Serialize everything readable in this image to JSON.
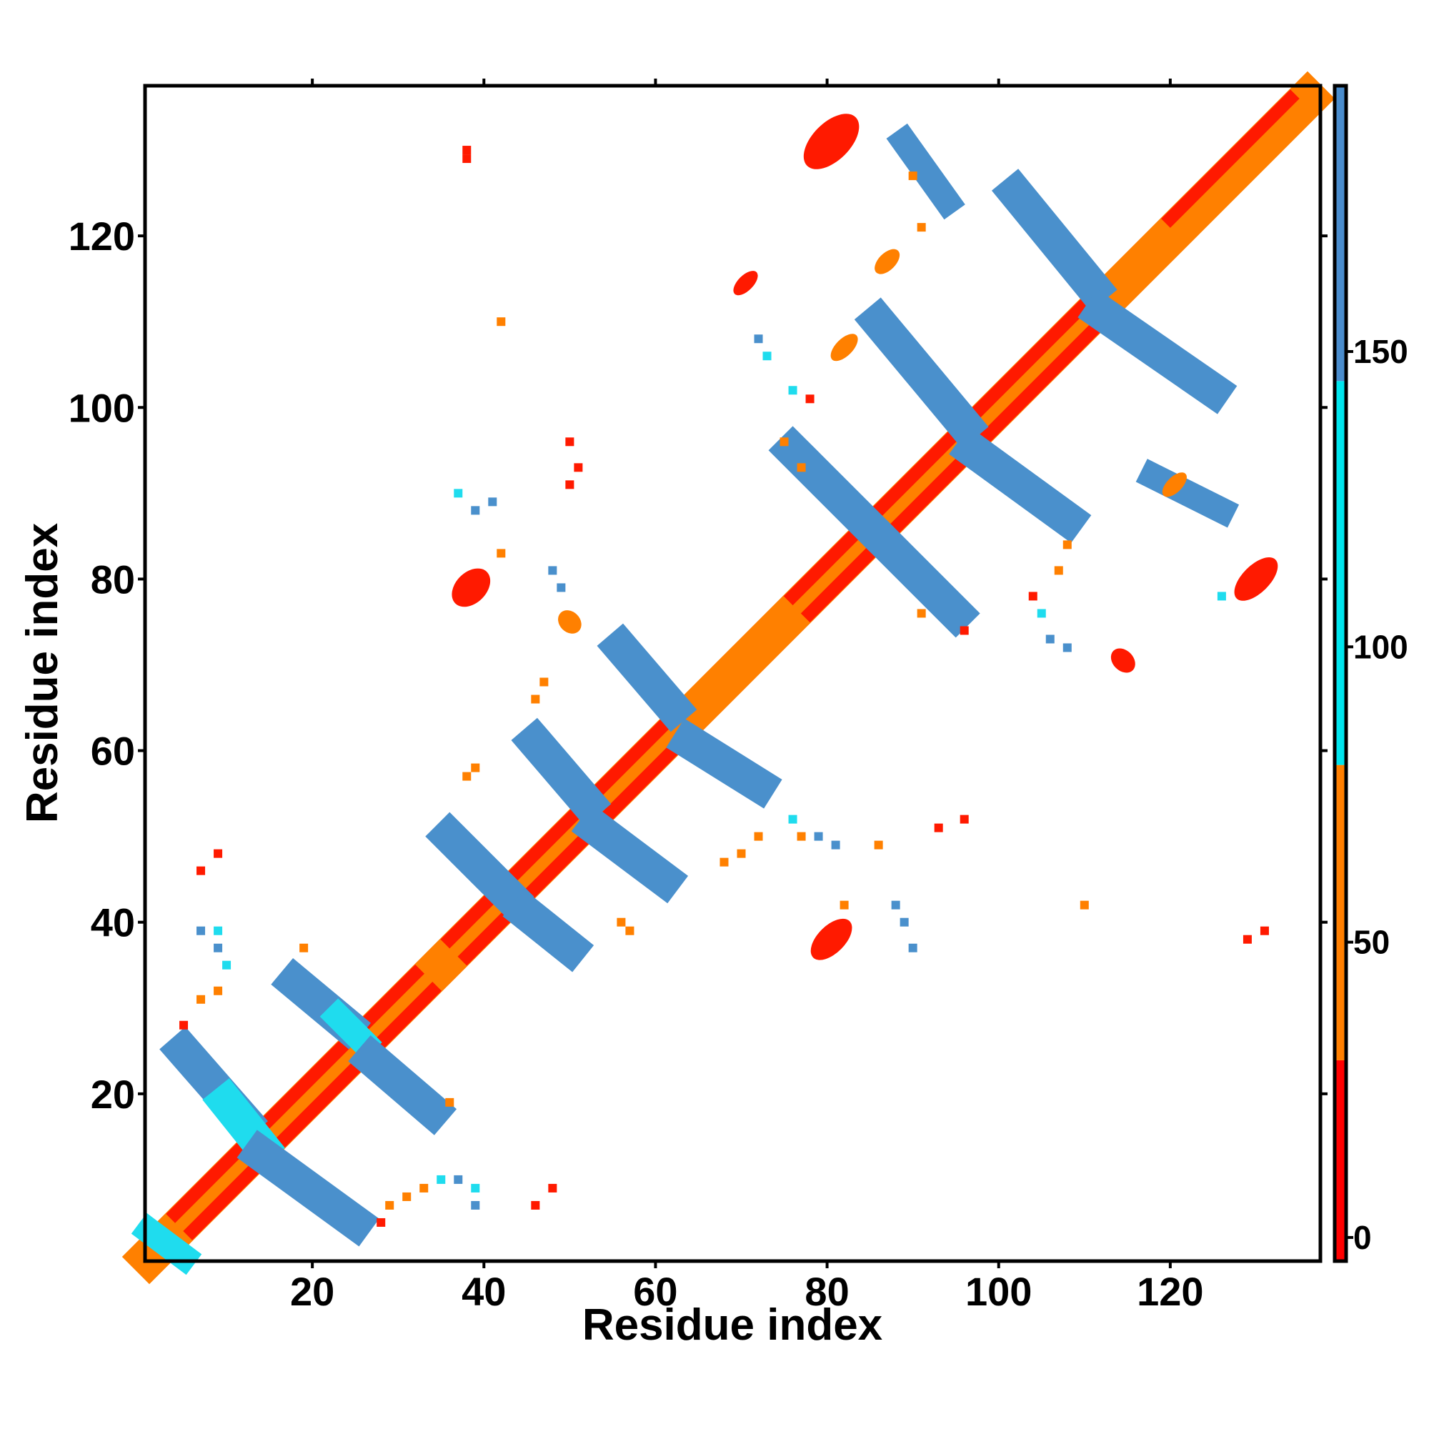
{
  "chart_data": {
    "type": "heatmap",
    "title": "",
    "xlabel": "Residue index",
    "ylabel": "Residue index",
    "xlim": [
      1,
      137
    ],
    "ylim": [
      1,
      137
    ],
    "x_ticks": [
      20,
      40,
      60,
      80,
      100,
      120
    ],
    "y_ticks": [
      20,
      40,
      60,
      80,
      100,
      120
    ],
    "colorbar": {
      "ticks": [
        0,
        50,
        100,
        150
      ],
      "range": [
        -4,
        195
      ],
      "bands": [
        {
          "from": -4,
          "to": 30,
          "color": "#ff0000"
        },
        {
          "from": 30,
          "to": 80,
          "color": "#ff7f00"
        },
        {
          "from": 80,
          "to": 145,
          "color": "#00e5ee"
        },
        {
          "from": 145,
          "to": 195,
          "color": "#4a8ccc"
        }
      ]
    },
    "colors": {
      "red": "#ff1a00",
      "orange": "#ff8000",
      "cyan": "#1fdcee",
      "blue": "#4a90cc"
    },
    "segments": [
      {
        "x1": 1,
        "y1": 1,
        "x2": 136,
        "y2": 136,
        "w": 4.5,
        "color": "orange"
      },
      {
        "x1": 4,
        "y1": 6,
        "x2": 32,
        "y2": 34,
        "w": 1.5,
        "color": "red"
      },
      {
        "x1": 6,
        "y1": 4,
        "x2": 34,
        "y2": 32,
        "w": 1.5,
        "color": "red"
      },
      {
        "x1": 36,
        "y1": 38,
        "x2": 62,
        "y2": 64,
        "w": 1.5,
        "color": "red"
      },
      {
        "x1": 38,
        "y1": 36,
        "x2": 64,
        "y2": 62,
        "w": 1.5,
        "color": "red"
      },
      {
        "x1": 76,
        "y1": 78,
        "x2": 110,
        "y2": 112,
        "w": 1.5,
        "color": "red"
      },
      {
        "x1": 78,
        "y1": 76,
        "x2": 112,
        "y2": 110,
        "w": 1.5,
        "color": "red"
      },
      {
        "x1": 120,
        "y1": 122,
        "x2": 134,
        "y2": 136,
        "w": 1.5,
        "color": "red"
      },
      {
        "x1": 1,
        "y1": 4,
        "x2": 5,
        "y2": 1,
        "w": 3,
        "color": "cyan"
      },
      {
        "x1": 5,
        "y1": 25,
        "x2": 12,
        "y2": 17,
        "w": 4,
        "color": "blue"
      },
      {
        "x1": 10,
        "y1": 19,
        "x2": 14,
        "y2": 14,
        "w": 4,
        "color": "cyan"
      },
      {
        "x1": 14,
        "y1": 13,
        "x2": 25,
        "y2": 5,
        "w": 4,
        "color": "blue"
      },
      {
        "x1": 18,
        "y1": 33,
        "x2": 24,
        "y2": 28,
        "w": 4,
        "color": "blue"
      },
      {
        "x1": 23,
        "y1": 29,
        "x2": 26,
        "y2": 26,
        "w": 3,
        "color": "cyan"
      },
      {
        "x1": 27,
        "y1": 24,
        "x2": 34,
        "y2": 18,
        "w": 4,
        "color": "blue"
      },
      {
        "x1": 36,
        "y1": 50,
        "x2": 43,
        "y2": 43,
        "w": 4,
        "color": "blue"
      },
      {
        "x1": 45,
        "y1": 41,
        "x2": 50,
        "y2": 37,
        "w": 4,
        "color": "blue"
      },
      {
        "x1": 46,
        "y1": 61,
        "x2": 52,
        "y2": 54,
        "w": 4,
        "color": "blue"
      },
      {
        "x1": 53,
        "y1": 51,
        "x2": 61,
        "y2": 45,
        "w": 4,
        "color": "blue"
      },
      {
        "x1": 56,
        "y1": 72,
        "x2": 62,
        "y2": 65,
        "w": 4,
        "color": "blue"
      },
      {
        "x1": 64,
        "y1": 61,
        "x2": 72,
        "y2": 56,
        "w": 4,
        "color": "blue"
      },
      {
        "x1": 76,
        "y1": 95,
        "x2": 85,
        "y2": 86,
        "w": 4,
        "color": "blue"
      },
      {
        "x1": 87,
        "y1": 84,
        "x2": 95,
        "y2": 76,
        "w": 4,
        "color": "blue"
      },
      {
        "x1": 86,
        "y1": 110,
        "x2": 96,
        "y2": 98,
        "w": 4,
        "color": "blue"
      },
      {
        "x1": 97,
        "y1": 95,
        "x2": 108,
        "y2": 87,
        "w": 4,
        "color": "blue"
      },
      {
        "x1": 102,
        "y1": 125,
        "x2": 111,
        "y2": 114,
        "w": 4,
        "color": "blue"
      },
      {
        "x1": 112,
        "y1": 111,
        "x2": 125,
        "y2": 102,
        "w": 4,
        "color": "blue"
      },
      {
        "x1": 89,
        "y1": 131,
        "x2": 94,
        "y2": 124,
        "w": 3,
        "color": "blue"
      },
      {
        "x1": 118,
        "y1": 92,
        "x2": 126,
        "y2": 88,
        "w": 3,
        "color": "blue"
      }
    ],
    "blobs": [
      {
        "x": 80.5,
        "y": 131,
        "rx": 4,
        "ry": 2.2,
        "color": "red"
      },
      {
        "x": 38.5,
        "y": 79,
        "rx": 2.6,
        "ry": 1.8,
        "color": "red"
      },
      {
        "x": 80.5,
        "y": 38,
        "rx": 3,
        "ry": 1.6,
        "color": "red"
      },
      {
        "x": 130,
        "y": 80,
        "rx": 3.2,
        "ry": 1.6,
        "color": "red"
      },
      {
        "x": 70.5,
        "y": 114.5,
        "rx": 1.8,
        "ry": 0.9,
        "color": "red"
      },
      {
        "x": 114.5,
        "y": 70.5,
        "rx": 1.2,
        "ry": 1.6,
        "color": "red"
      },
      {
        "x": 50,
        "y": 75,
        "rx": 1.2,
        "ry": 1.5,
        "color": "orange"
      },
      {
        "x": 120.5,
        "y": 91,
        "rx": 1.8,
        "ry": 0.9,
        "color": "orange"
      },
      {
        "x": 87,
        "y": 117,
        "rx": 1.8,
        "ry": 1,
        "color": "orange"
      },
      {
        "x": 82,
        "y": 107,
        "rx": 2,
        "ry": 1,
        "color": "orange"
      }
    ],
    "cells": [
      {
        "x": 38,
        "y": 130,
        "color": "red"
      },
      {
        "x": 38,
        "y": 129,
        "color": "red"
      },
      {
        "x": 42,
        "y": 110,
        "color": "orange"
      },
      {
        "x": 50,
        "y": 96,
        "color": "red"
      },
      {
        "x": 51,
        "y": 93,
        "color": "red"
      },
      {
        "x": 50,
        "y": 91,
        "color": "red"
      },
      {
        "x": 41,
        "y": 89,
        "color": "blue"
      },
      {
        "x": 39,
        "y": 88,
        "color": "blue"
      },
      {
        "x": 37,
        "y": 90,
        "color": "cyan"
      },
      {
        "x": 42,
        "y": 83,
        "color": "orange"
      },
      {
        "x": 48,
        "y": 81,
        "color": "blue"
      },
      {
        "x": 49,
        "y": 79,
        "color": "blue"
      },
      {
        "x": 47,
        "y": 68,
        "color": "orange"
      },
      {
        "x": 46,
        "y": 66,
        "color": "orange"
      },
      {
        "x": 39,
        "y": 58,
        "color": "orange"
      },
      {
        "x": 38,
        "y": 57,
        "color": "orange"
      },
      {
        "x": 72,
        "y": 108,
        "color": "blue"
      },
      {
        "x": 73,
        "y": 106,
        "color": "cyan"
      },
      {
        "x": 76,
        "y": 102,
        "color": "cyan"
      },
      {
        "x": 78,
        "y": 101,
        "color": "red"
      },
      {
        "x": 90,
        "y": 127,
        "color": "orange"
      },
      {
        "x": 91,
        "y": 121,
        "color": "orange"
      },
      {
        "x": 75,
        "y": 96,
        "color": "orange"
      },
      {
        "x": 77,
        "y": 93,
        "color": "orange"
      },
      {
        "x": 76,
        "y": 52,
        "color": "cyan"
      },
      {
        "x": 77,
        "y": 50,
        "color": "orange"
      },
      {
        "x": 72,
        "y": 50,
        "color": "orange"
      },
      {
        "x": 70,
        "y": 48,
        "color": "orange"
      },
      {
        "x": 68,
        "y": 47,
        "color": "orange"
      },
      {
        "x": 79,
        "y": 50,
        "color": "blue"
      },
      {
        "x": 81,
        "y": 49,
        "color": "blue"
      },
      {
        "x": 86,
        "y": 49,
        "color": "orange"
      },
      {
        "x": 93,
        "y": 51,
        "color": "red"
      },
      {
        "x": 96,
        "y": 52,
        "color": "red"
      },
      {
        "x": 82,
        "y": 42,
        "color": "orange"
      },
      {
        "x": 88,
        "y": 42,
        "color": "blue"
      },
      {
        "x": 89,
        "y": 40,
        "color": "blue"
      },
      {
        "x": 90,
        "y": 37,
        "color": "blue"
      },
      {
        "x": 110,
        "y": 42,
        "color": "orange"
      },
      {
        "x": 131,
        "y": 39,
        "color": "red"
      },
      {
        "x": 129,
        "y": 38,
        "color": "red"
      },
      {
        "x": 105,
        "y": 76,
        "color": "cyan"
      },
      {
        "x": 104,
        "y": 78,
        "color": "red"
      },
      {
        "x": 106,
        "y": 73,
        "color": "blue"
      },
      {
        "x": 108,
        "y": 72,
        "color": "blue"
      },
      {
        "x": 108,
        "y": 84,
        "color": "orange"
      },
      {
        "x": 107,
        "y": 81,
        "color": "orange"
      },
      {
        "x": 126,
        "y": 78,
        "color": "cyan"
      },
      {
        "x": 96,
        "y": 74,
        "color": "red"
      },
      {
        "x": 91,
        "y": 76,
        "color": "orange"
      },
      {
        "x": 9,
        "y": 48,
        "color": "red"
      },
      {
        "x": 7,
        "y": 46,
        "color": "red"
      },
      {
        "x": 7,
        "y": 39,
        "color": "blue"
      },
      {
        "x": 9,
        "y": 39,
        "color": "cyan"
      },
      {
        "x": 9,
        "y": 37,
        "color": "blue"
      },
      {
        "x": 10,
        "y": 35,
        "color": "cyan"
      },
      {
        "x": 9,
        "y": 32,
        "color": "orange"
      },
      {
        "x": 7,
        "y": 31,
        "color": "orange"
      },
      {
        "x": 5,
        "y": 28,
        "color": "red"
      },
      {
        "x": 19,
        "y": 37,
        "color": "orange"
      },
      {
        "x": 36,
        "y": 19,
        "color": "orange"
      },
      {
        "x": 35,
        "y": 10,
        "color": "cyan"
      },
      {
        "x": 37,
        "y": 10,
        "color": "blue"
      },
      {
        "x": 39,
        "y": 9,
        "color": "cyan"
      },
      {
        "x": 39,
        "y": 7,
        "color": "blue"
      },
      {
        "x": 33,
        "y": 9,
        "color": "orange"
      },
      {
        "x": 31,
        "y": 8,
        "color": "orange"
      },
      {
        "x": 29,
        "y": 7,
        "color": "orange"
      },
      {
        "x": 28,
        "y": 5,
        "color": "red"
      },
      {
        "x": 46,
        "y": 7,
        "color": "red"
      },
      {
        "x": 48,
        "y": 9,
        "color": "red"
      },
      {
        "x": 56,
        "y": 40,
        "color": "orange"
      },
      {
        "x": 57,
        "y": 39,
        "color": "orange"
      }
    ]
  }
}
